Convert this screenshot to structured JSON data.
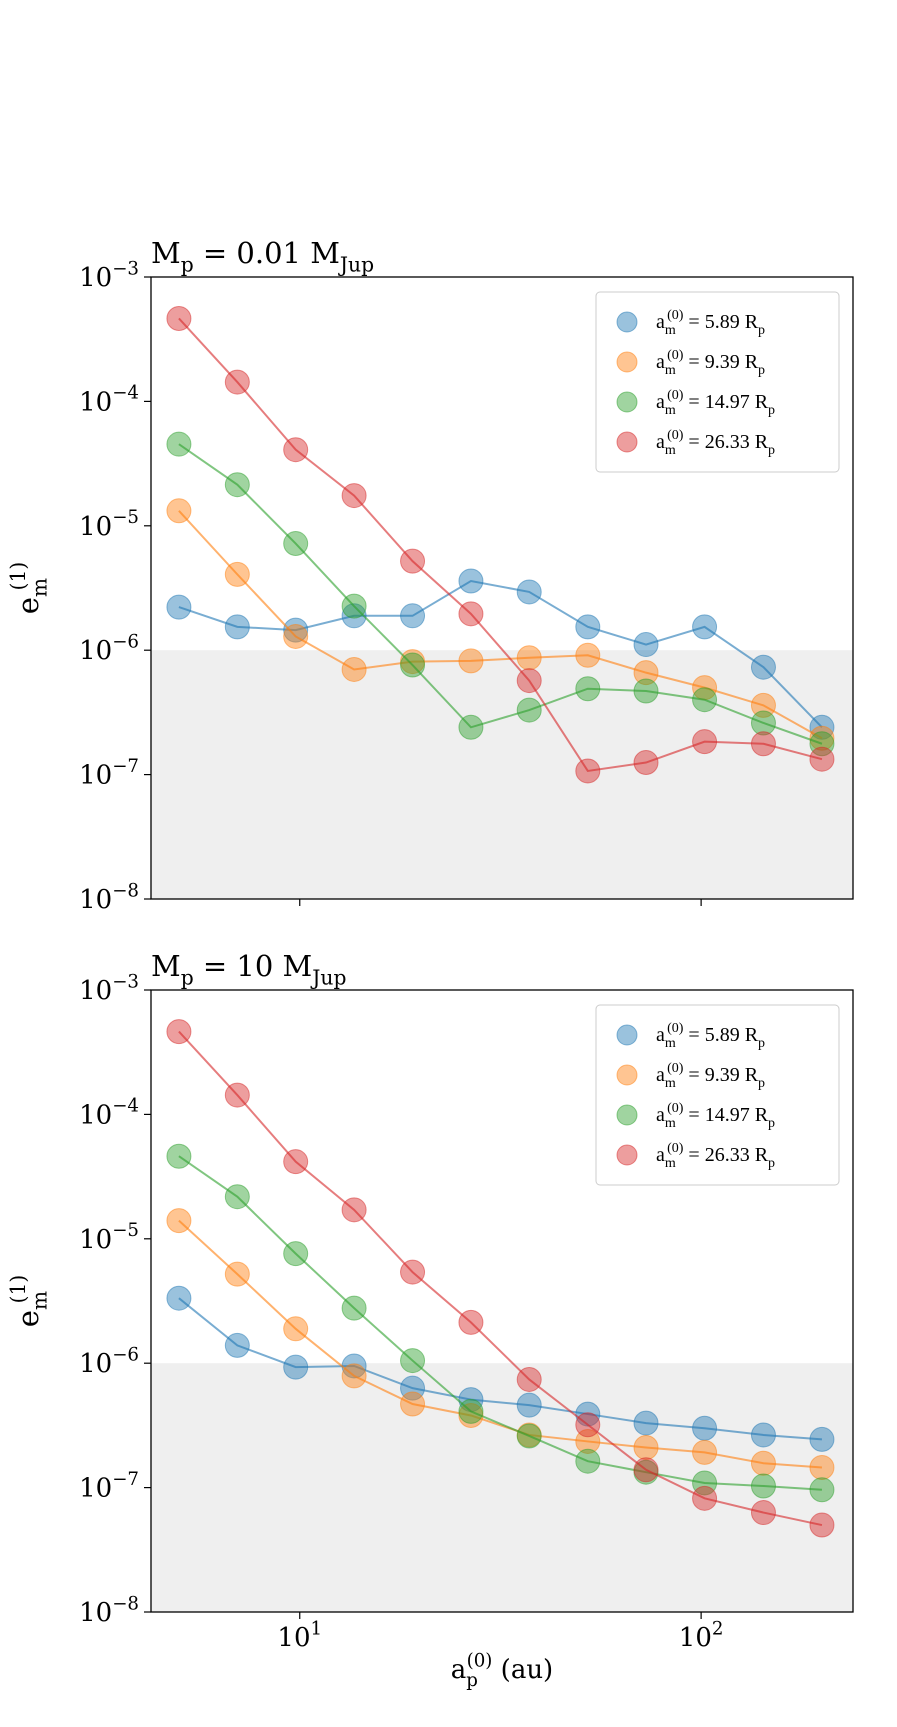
{
  "chart_data": [
    {
      "type": "line",
      "title": "M_p = 0.01 M_{Jup}",
      "ylabel": "e_m^{(1)}",
      "xscale": "log",
      "yscale": "log",
      "xlim": [
        4.26,
        239
      ],
      "ylim": [
        1e-08,
        0.001
      ],
      "xticks": [
        10,
        100
      ],
      "xticklabels": false,
      "yticks": [
        {
          "value": 1e-08,
          "label": "10^{−8}"
        },
        {
          "value": 1e-07,
          "label": "10^{−7}"
        },
        {
          "value": 1e-06,
          "label": "10^{−6}"
        },
        {
          "value": 1e-05,
          "label": "10^{−5}"
        },
        {
          "value": 0.0001,
          "label": "10^{−4}"
        },
        {
          "value": 0.001,
          "label": "10^{−3}"
        }
      ],
      "shade_below": 1e-06,
      "legend": "upper right",
      "x": [
        5,
        6.99,
        9.77,
        13.66,
        19.1,
        26.7,
        37.3,
        52.2,
        72.9,
        102,
        143,
        200
      ],
      "series": [
        {
          "name": "a_m^{(0)} = 5.89 R_p",
          "color": "#1f77b4",
          "values": [
            2.22e-06,
            1.54e-06,
            1.45e-06,
            1.89e-06,
            1.89e-06,
            3.6e-06,
            2.94e-06,
            1.54e-06,
            1.11e-06,
            1.54e-06,
            7.3e-07,
            2.4e-07
          ]
        },
        {
          "name": "a_m^{(0)} = 9.39 R_p",
          "color": "#ff7f0e",
          "values": [
            1.32e-05,
            4.07e-06,
            1.29e-06,
            7e-07,
            8.1e-07,
            8.2e-07,
            8.7e-07,
            9.1e-07,
            6.6e-07,
            5e-07,
            3.6e-07,
            1.96e-07
          ]
        },
        {
          "name": "a_m^{(0)} = 14.97 R_p",
          "color": "#2ca02c",
          "values": [
            4.53e-05,
            2.14e-05,
            7.2e-06,
            2.26e-06,
            7.6e-07,
            2.4e-07,
            3.3e-07,
            4.9e-07,
            4.7e-07,
            4e-07,
            2.6e-07,
            1.77e-07
          ]
        },
        {
          "name": "a_m^{(0)} = 26.33 R_p",
          "color": "#d62728",
          "values": [
            0.000464,
            0.000143,
            4.09e-05,
            1.75e-05,
            5.2e-06,
            1.96e-06,
            5.7e-07,
            1.07e-07,
            1.25e-07,
            1.84e-07,
            1.77e-07,
            1.33e-07
          ]
        }
      ]
    },
    {
      "type": "line",
      "title": "M_p = 10 M_{Jup}",
      "ylabel": "e_m^{(1)}",
      "xlabel": "a_p^{(0)} (au)",
      "xscale": "log",
      "yscale": "log",
      "xlim": [
        4.26,
        239
      ],
      "ylim": [
        1e-08,
        0.001
      ],
      "xticks": [
        {
          "value": 10,
          "label": "10^{1}"
        },
        {
          "value": 100,
          "label": "10^{2}"
        }
      ],
      "xticklabels": true,
      "yticks": [
        {
          "value": 1e-08,
          "label": "10^{−8}"
        },
        {
          "value": 1e-07,
          "label": "10^{−7}"
        },
        {
          "value": 1e-06,
          "label": "10^{−6}"
        },
        {
          "value": 1e-05,
          "label": "10^{−5}"
        },
        {
          "value": 0.0001,
          "label": "10^{−4}"
        },
        {
          "value": 0.001,
          "label": "10^{−3}"
        }
      ],
      "shade_below": 1e-06,
      "legend": "upper right",
      "x": [
        5,
        6.99,
        9.77,
        13.66,
        19.1,
        26.7,
        37.3,
        52.2,
        72.9,
        102,
        143,
        200
      ],
      "series": [
        {
          "name": "a_m^{(0)} = 5.89 R_p",
          "color": "#1f77b4",
          "values": [
            3.33e-06,
            1.39e-06,
            9.3e-07,
            9.5e-07,
            6.3e-07,
            5.1e-07,
            4.6e-07,
            3.9e-07,
            3.3e-07,
            3e-07,
            2.65e-07,
            2.44e-07
          ]
        },
        {
          "name": "a_m^{(0)} = 9.39 R_p",
          "color": "#ff7f0e",
          "values": [
            1.4e-05,
            5.2e-06,
            1.89e-06,
            7.9e-07,
            4.7e-07,
            3.8e-07,
            2.65e-07,
            2.35e-07,
            2.1e-07,
            1.92e-07,
            1.57e-07,
            1.45e-07
          ]
        },
        {
          "name": "a_m^{(0)} = 14.97 R_p",
          "color": "#2ca02c",
          "values": [
            4.61e-05,
            2.18e-05,
            7.6e-06,
            2.77e-06,
            1.05e-06,
            4.1e-07,
            2.6e-07,
            1.63e-07,
            1.33e-07,
            1.09e-07,
            1.03e-07,
            9.6e-08
          ]
        },
        {
          "name": "a_m^{(0)} = 26.33 R_p",
          "color": "#d62728",
          "values": [
            0.000463,
            0.000143,
            4.17e-05,
            1.71e-05,
            5.4e-06,
            2.13e-06,
            7.4e-07,
            3.2e-07,
            1.39e-07,
            8.2e-08,
            6.3e-08,
            5e-08
          ]
        }
      ]
    }
  ]
}
